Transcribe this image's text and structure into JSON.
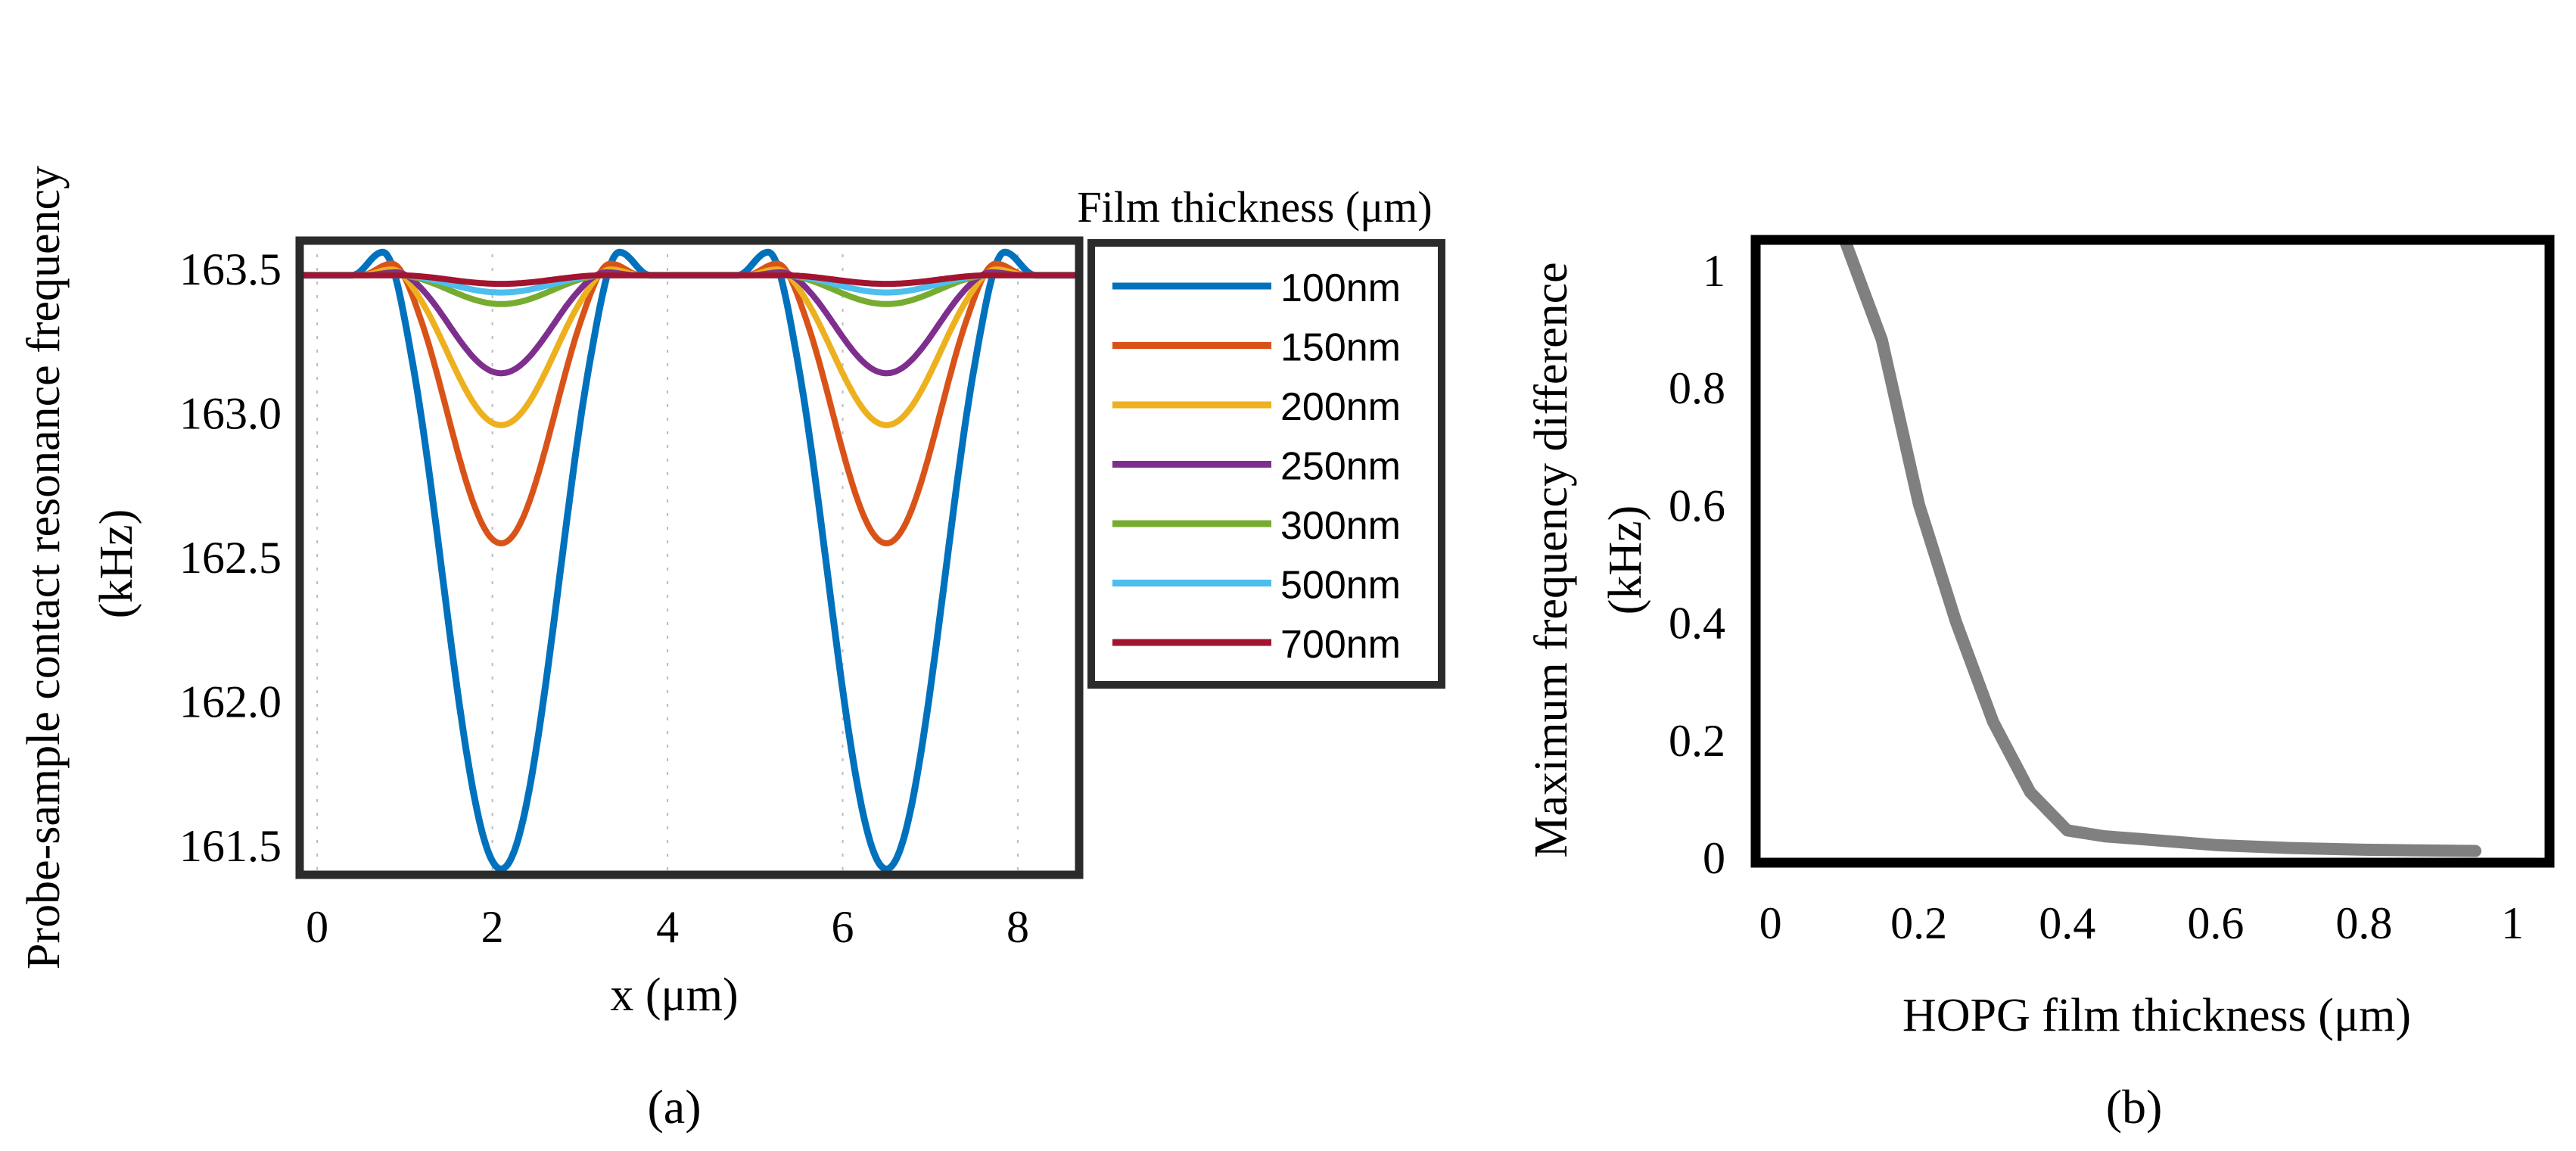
{
  "chart_data": [
    {
      "panel_label": "(a)",
      "type": "line",
      "title": "",
      "xlabel": "x (μm)",
      "ylabel_lines": [
        "Probe-sample contact resonance frequency",
        "(kHz)"
      ],
      "xlim": [
        -0.2,
        8.7
      ],
      "ylim": [
        161.4,
        163.6
      ],
      "xticks": [
        0,
        2,
        4,
        6,
        8
      ],
      "xtick_labels": [
        "0",
        "2",
        "4",
        "6",
        "8"
      ],
      "yticks": [
        161.5,
        162.0,
        162.5,
        163.0,
        163.5
      ],
      "ytick_labels": [
        "161.5",
        "162.0",
        "162.5",
        "163.0",
        "163.5"
      ],
      "baseline_value": 163.48,
      "dip_centers": [
        2.1,
        6.5
      ],
      "legend_title": "Film thickness (μm)",
      "legend_position": "outside-right",
      "series": [
        {
          "name": "100nm",
          "color": "#0072BD",
          "min_value": 161.42,
          "overshoot": 0.08,
          "dip_halfwidth": 1.35
        },
        {
          "name": "150nm",
          "color": "#D95319",
          "min_value": 162.55,
          "overshoot": 0.04,
          "dip_halfwidth": 1.25
        },
        {
          "name": "200nm",
          "color": "#EDB120",
          "min_value": 162.96,
          "overshoot": 0.02,
          "dip_halfwidth": 1.25
        },
        {
          "name": "250nm",
          "color": "#7E2F8E",
          "min_value": 163.14,
          "overshoot": 0.01,
          "dip_halfwidth": 1.2
        },
        {
          "name": "300nm",
          "color": "#77AC30",
          "min_value": 163.38,
          "overshoot": 0.0,
          "dip_halfwidth": 1.2
        },
        {
          "name": "500nm",
          "color": "#4DBEEE",
          "min_value": 163.42,
          "overshoot": 0.0,
          "dip_halfwidth": 1.2
        },
        {
          "name": "700nm",
          "color": "#A2142F",
          "min_value": 163.45,
          "overshoot": 0.0,
          "dip_halfwidth": 1.2
        }
      ]
    },
    {
      "panel_label": "(b)",
      "type": "line",
      "title": "",
      "xlabel": "HOPG film thickness (μm)",
      "ylabel_lines": [
        "Maximum frequency difference",
        "(kHz)"
      ],
      "xlim": [
        -0.02,
        1.05
      ],
      "ylim": [
        -0.01,
        1.05
      ],
      "xticks": [
        0,
        0.2,
        0.4,
        0.6,
        0.8,
        1
      ],
      "xtick_labels": [
        "0",
        "0.2",
        "0.4",
        "0.6",
        "0.8",
        "1"
      ],
      "yticks": [
        0,
        0.2,
        0.4,
        0.6,
        0.8,
        1
      ],
      "ytick_labels": [
        "0",
        "0.2",
        "0.4",
        "0.6",
        "0.8",
        "1"
      ],
      "series": [
        {
          "name": "Maximum frequency difference",
          "color": "#808080",
          "x": [
            0.1,
            0.15,
            0.2,
            0.25,
            0.3,
            0.35,
            0.4,
            0.45,
            0.5,
            0.6,
            0.7,
            0.8,
            0.95
          ],
          "y": [
            1.05,
            0.88,
            0.6,
            0.4,
            0.23,
            0.11,
            0.045,
            0.035,
            0.03,
            0.02,
            0.015,
            0.012,
            0.01
          ]
        }
      ]
    }
  ]
}
